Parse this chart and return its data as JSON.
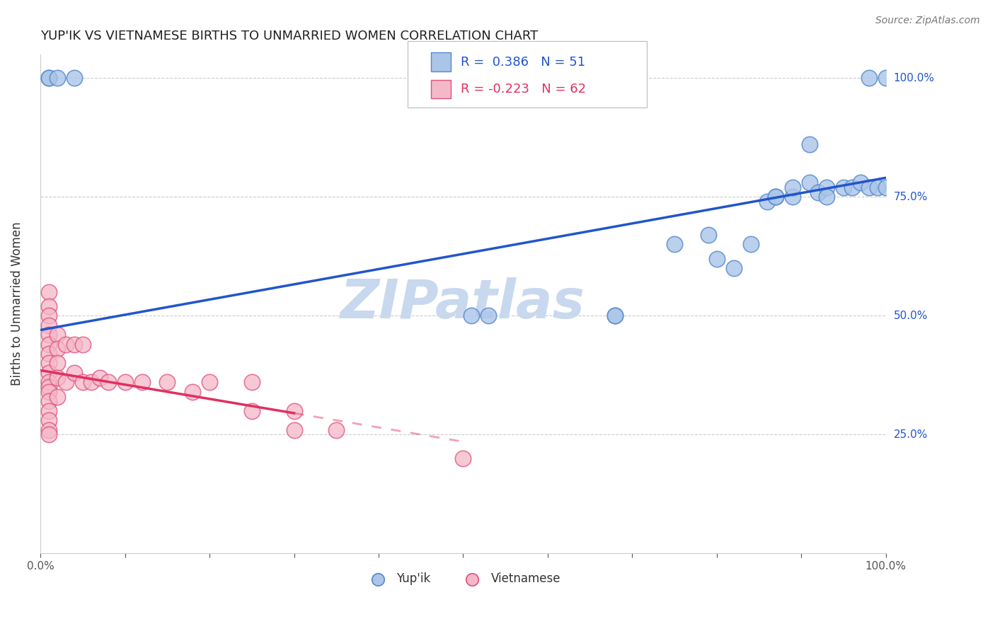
{
  "title": "YUP'IK VS VIETNAMESE BIRTHS TO UNMARRIED WOMEN CORRELATION CHART",
  "source": "Source: ZipAtlas.com",
  "ylabel": "Births to Unmarried Women",
  "ytick_labels": [
    "25.0%",
    "50.0%",
    "75.0%",
    "100.0%"
  ],
  "ytick_values": [
    0.25,
    0.5,
    0.75,
    1.0
  ],
  "color_yupik_fill": "#aac5e8",
  "color_yupik_edge": "#5588cc",
  "color_vietnamese_fill": "#f5b8c8",
  "color_vietnamese_edge": "#e05080",
  "color_line_yupik": "#2255cc",
  "color_line_vietnamese": "#e03060",
  "color_watermark": "#c8d8ee",
  "yupik_x": [
    0.01,
    0.01,
    0.02,
    0.04,
    0.51,
    0.53,
    0.68,
    0.68,
    0.75,
    0.79,
    0.8,
    0.82,
    0.84,
    0.86,
    0.87,
    0.87,
    0.89,
    0.89,
    0.91,
    0.91,
    0.92,
    0.93,
    0.93,
    0.95,
    0.96,
    0.97,
    0.98,
    0.98,
    0.99,
    1.0,
    1.0
  ],
  "yupik_y": [
    1.0,
    1.0,
    1.0,
    1.0,
    0.5,
    0.5,
    0.5,
    0.5,
    0.65,
    0.67,
    0.62,
    0.6,
    0.65,
    0.74,
    0.75,
    0.75,
    0.75,
    0.77,
    0.86,
    0.78,
    0.76,
    0.77,
    0.75,
    0.77,
    0.77,
    0.78,
    0.77,
    1.0,
    0.77,
    0.77,
    1.0
  ],
  "vietnamese_x": [
    0.01,
    0.01,
    0.01,
    0.01,
    0.01,
    0.01,
    0.01,
    0.01,
    0.01,
    0.01,
    0.01,
    0.01,
    0.01,
    0.01,
    0.01,
    0.01,
    0.01,
    0.02,
    0.02,
    0.02,
    0.02,
    0.02,
    0.03,
    0.03,
    0.04,
    0.04,
    0.05,
    0.05,
    0.06,
    0.07,
    0.08,
    0.1,
    0.12,
    0.15,
    0.18,
    0.2,
    0.25,
    0.25,
    0.3,
    0.3,
    0.35,
    0.5
  ],
  "vietnamese_y": [
    0.55,
    0.52,
    0.5,
    0.48,
    0.46,
    0.44,
    0.42,
    0.4,
    0.38,
    0.36,
    0.35,
    0.34,
    0.32,
    0.3,
    0.28,
    0.26,
    0.25,
    0.46,
    0.43,
    0.4,
    0.37,
    0.33,
    0.44,
    0.36,
    0.44,
    0.38,
    0.44,
    0.36,
    0.36,
    0.37,
    0.36,
    0.36,
    0.36,
    0.36,
    0.34,
    0.36,
    0.36,
    0.3,
    0.3,
    0.26,
    0.26,
    0.2
  ],
  "xlim": [
    0.0,
    1.0
  ],
  "ylim": [
    0.0,
    1.05
  ],
  "line_yupik_x0": 0.0,
  "line_yupik_y0": 0.47,
  "line_yupik_x1": 1.0,
  "line_yupik_y1": 0.79,
  "line_viet_x0": 0.0,
  "line_viet_y0": 0.385,
  "line_viet_solid_x1": 0.3,
  "line_viet_solid_y1": 0.295,
  "line_viet_dash_x1": 0.5,
  "line_viet_dash_y1": 0.235
}
